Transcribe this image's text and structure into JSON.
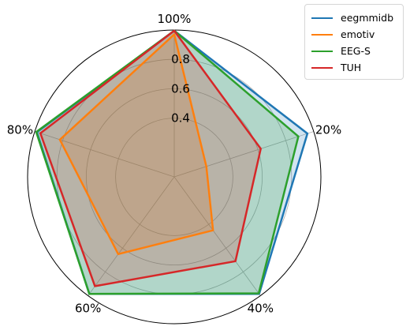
{
  "chart_data": {
    "type": "radar",
    "axes": [
      "100%",
      "20%",
      "40%",
      "60%",
      "80%"
    ],
    "rticks": [
      "0.4",
      "0.6",
      "0.8"
    ],
    "rtick_values": [
      0.4,
      0.6,
      0.8
    ],
    "rlim": [
      0,
      1
    ],
    "grid": true,
    "legend_position": "top-right",
    "series": [
      {
        "name": "eegmmidb",
        "color": "#1f77b4",
        "values": [
          0.995,
          0.955,
          0.985,
          0.985,
          0.985
        ]
      },
      {
        "name": "emotiv",
        "color": "#ff7f0e",
        "values": [
          0.97,
          0.23,
          0.45,
          0.65,
          0.82
        ]
      },
      {
        "name": "EEG-S",
        "color": "#2ca02c",
        "values": [
          0.995,
          0.89,
          0.98,
          0.985,
          0.99
        ]
      },
      {
        "name": "TUH",
        "color": "#d62728",
        "values": [
          0.995,
          0.62,
          0.71,
          0.92,
          0.96
        ]
      }
    ]
  }
}
